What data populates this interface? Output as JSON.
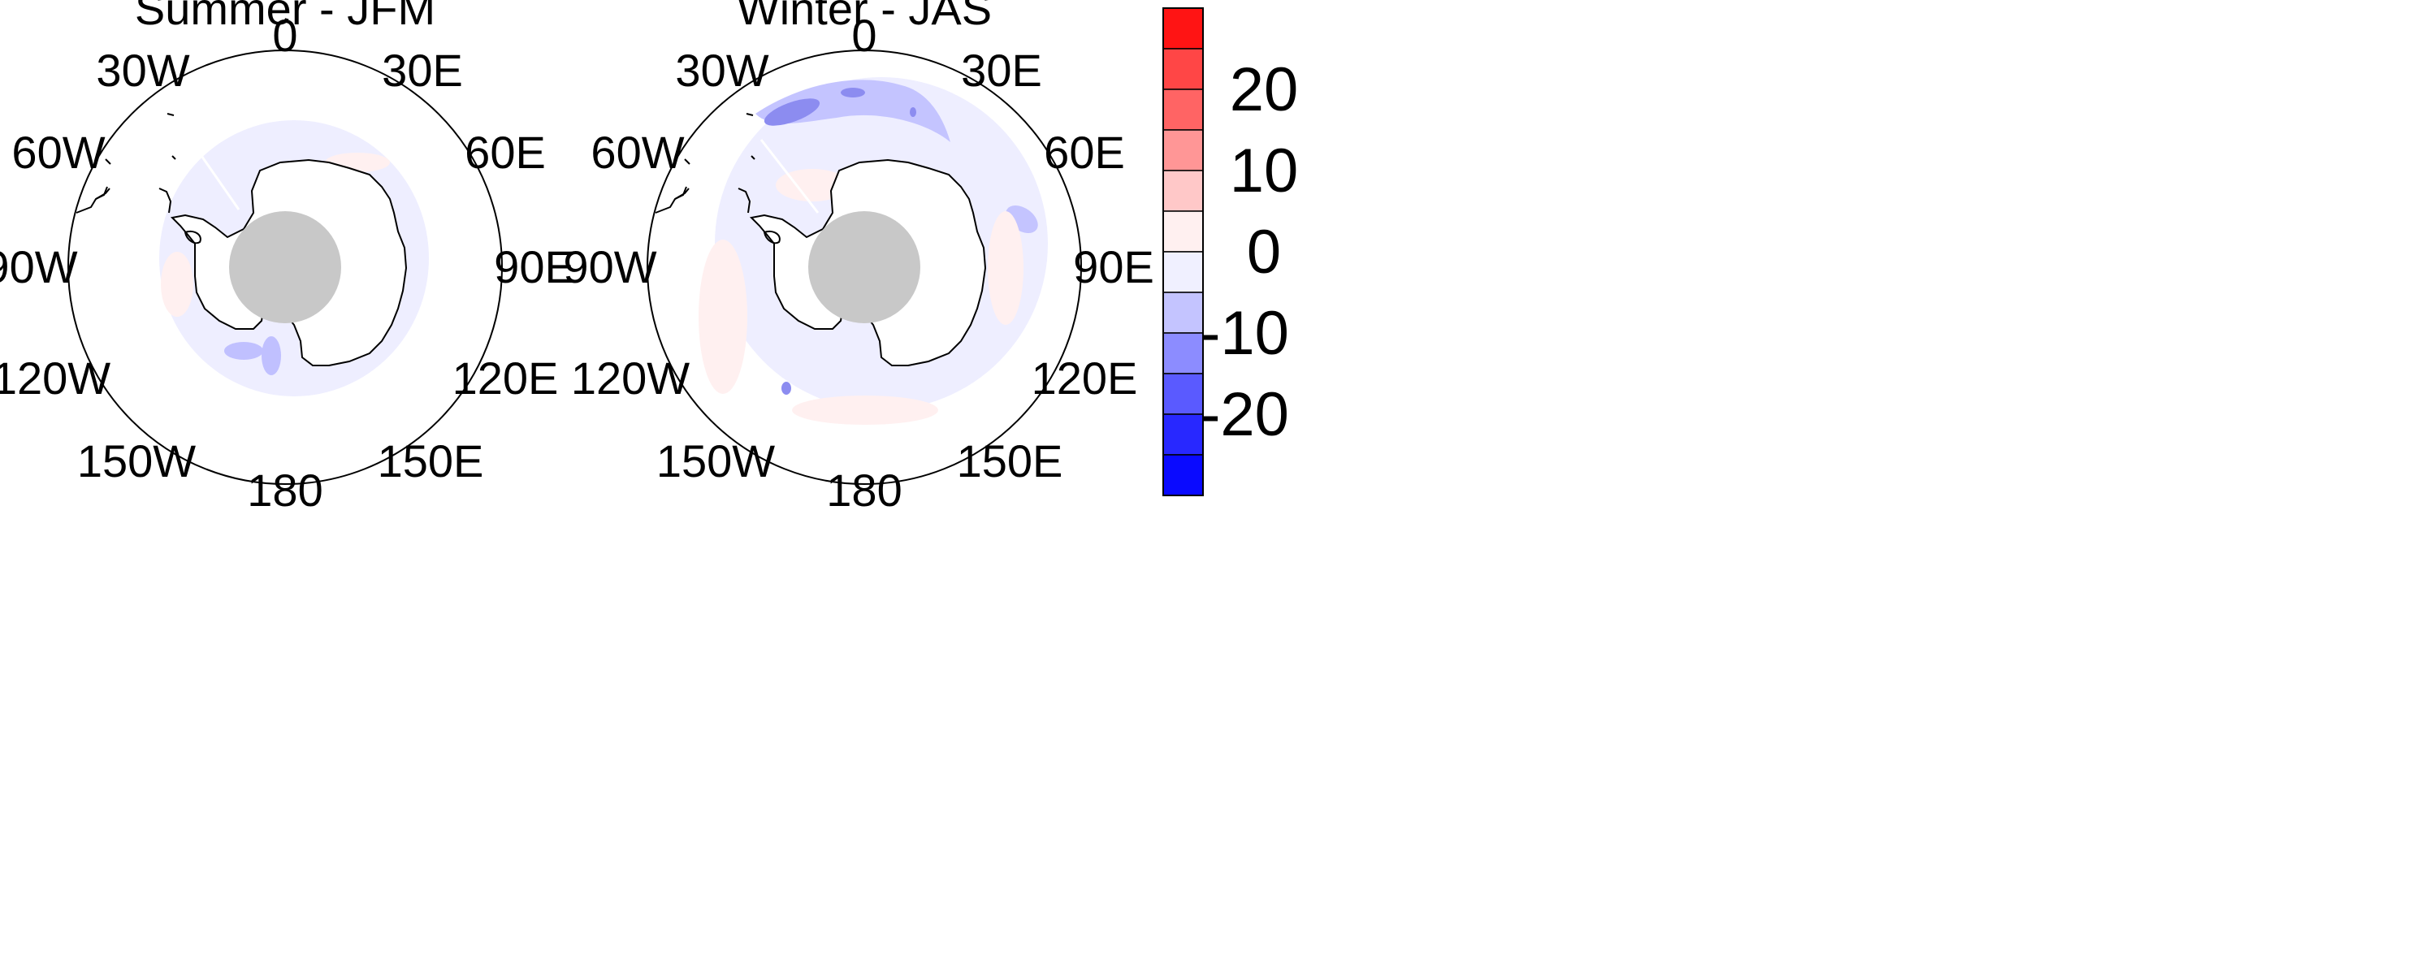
{
  "panels": [
    {
      "id": "summer",
      "title": "Summer - JFM",
      "longitude_labels": [
        "0",
        "30E",
        "60E",
        "90E",
        "120E",
        "150E",
        "180",
        "150W",
        "120W",
        "90W",
        "60W",
        "30W"
      ]
    },
    {
      "id": "winter",
      "title": "Winter - JAS",
      "longitude_labels": [
        "0",
        "30E",
        "60E",
        "90E",
        "120E",
        "150E",
        "180",
        "150W",
        "120W",
        "90W",
        "60W",
        "30W"
      ]
    }
  ],
  "colorbar": {
    "tick_labels": [
      "20",
      "10",
      "0",
      "-10",
      "-20"
    ],
    "colors": [
      "#ff1414",
      "#ff4646",
      "#ff6464",
      "#ff9696",
      "#ffc8c8",
      "#fff0f0",
      "#f0f0ff",
      "#c4c4ff",
      "#8c8cff",
      "#5a5aff",
      "#2828ff",
      "#0a0aff"
    ]
  },
  "map_colors": {
    "land": "#ffffff",
    "pole_mask": "#c8c8c8",
    "light_blue": "#eeeeff",
    "light_red": "#fff0f0",
    "mid_blue": "#c0c0ff",
    "dark_blue": "#8c8cf0"
  }
}
